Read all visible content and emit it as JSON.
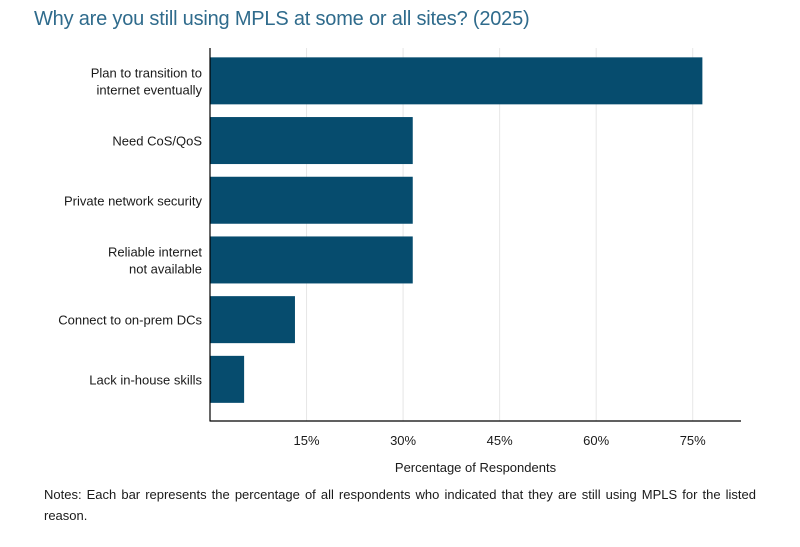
{
  "title": "Why are you still using MPLS at some or all sites? (2025)",
  "xlabel": "Percentage of Respondents",
  "notes": "Notes: Each bar represents the percentage of all respondents who indicated that they are still using MPLS for the listed reason.",
  "colors": {
    "bar": "#064c6e",
    "title": "#2f6b8c",
    "grid": "#e6e6e6",
    "axis": "#000000"
  },
  "chart_data": {
    "type": "bar",
    "orientation": "horizontal",
    "categories": [
      [
        "Plan to transition to",
        "internet eventually"
      ],
      [
        "Need CoS/QoS"
      ],
      [
        "Private network security"
      ],
      [
        "Reliable internet",
        "not available"
      ],
      [
        "Connect to on-prem DCs"
      ],
      [
        "Lack in-house skills"
      ]
    ],
    "values": [
      76.5,
      31.5,
      31.5,
      31.5,
      13.2,
      5.3
    ],
    "xticks": [
      15,
      30,
      45,
      60,
      75
    ],
    "xtick_labels": [
      "15%",
      "30%",
      "45%",
      "60%",
      "75%"
    ],
    "xlim": [
      0,
      82.5
    ],
    "grid": true,
    "title": "Why are you still using MPLS at some or all sites? (2025)",
    "xlabel": "Percentage of Respondents",
    "ylabel": ""
  }
}
